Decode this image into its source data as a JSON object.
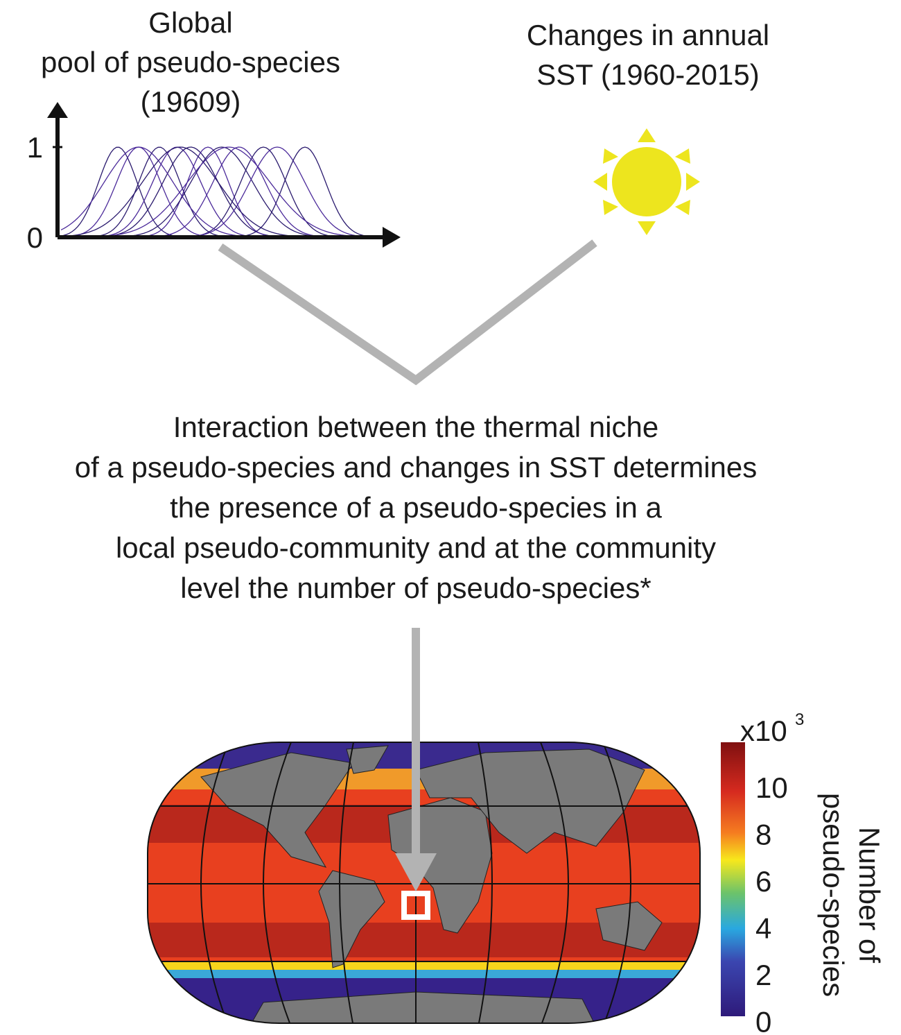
{
  "left_panel": {
    "title": [
      "Global",
      "pool of pseudo-species",
      "(19609)"
    ],
    "axis_labels": [
      "1",
      "0"
    ]
  },
  "right_panel": {
    "title": [
      "Changes in annual",
      "SST (1960-2015)"
    ]
  },
  "middle_text": [
    "Interaction between the thermal niche",
    "of a pseudo-species and changes in SST determines",
    "the presence of a pseudo-species in a",
    "local pseudo-community and at the community",
    "level the number of pseudo-species*"
  ],
  "colorbar": {
    "multiplier": "x10",
    "exponent": "3",
    "ticks": [
      "10",
      "8",
      "6",
      "4",
      "2",
      "0"
    ],
    "label": [
      "Number of",
      "pseudo-species"
    ]
  }
}
